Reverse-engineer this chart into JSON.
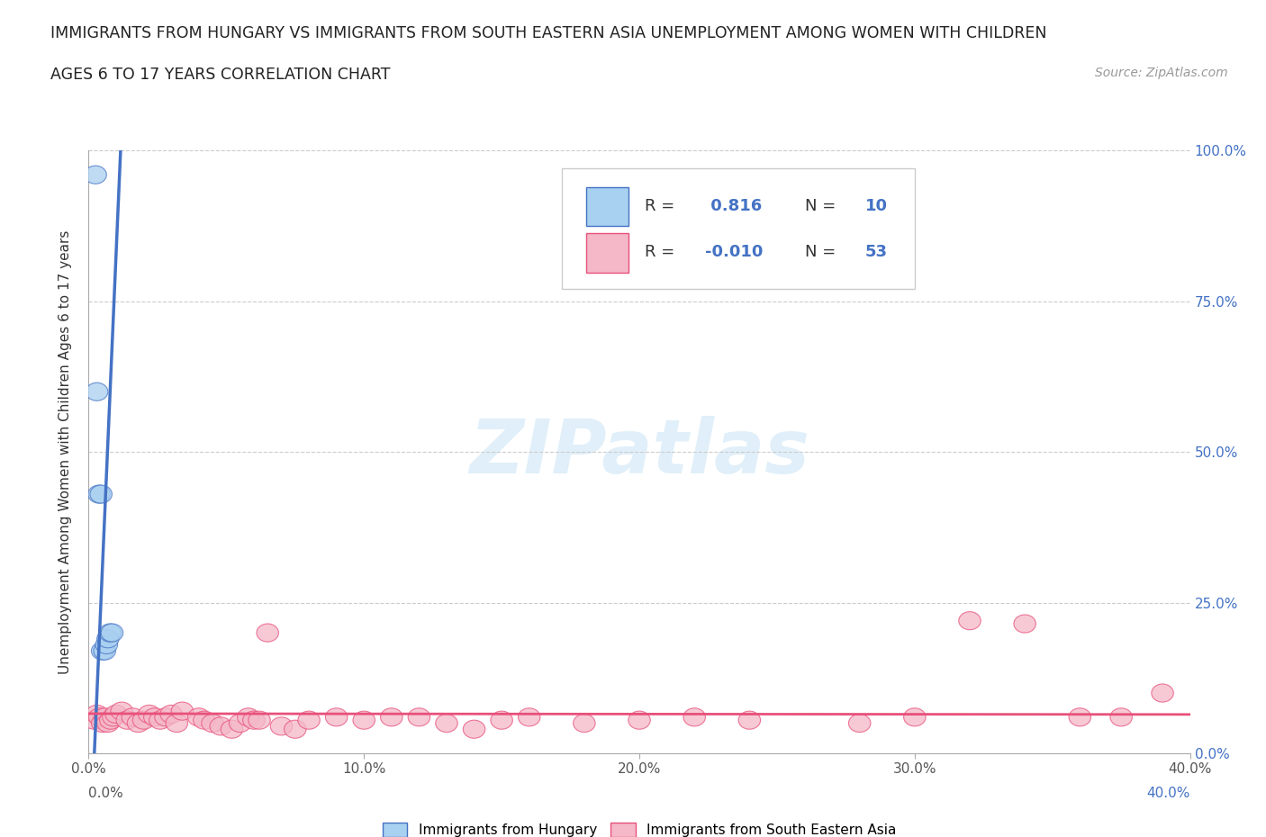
{
  "title_line1": "IMMIGRANTS FROM HUNGARY VS IMMIGRANTS FROM SOUTH EASTERN ASIA UNEMPLOYMENT AMONG WOMEN WITH CHILDREN",
  "title_line2": "AGES 6 TO 17 YEARS CORRELATION CHART",
  "source": "Source: ZipAtlas.com",
  "ylabel": "Unemployment Among Women with Children Ages 6 to 17 years",
  "xlim": [
    0.0,
    0.4
  ],
  "ylim": [
    0.0,
    1.0
  ],
  "xticks": [
    0.0,
    0.1,
    0.2,
    0.3,
    0.4
  ],
  "xticklabels": [
    "0.0%",
    "10.0%",
    "20.0%",
    "30.0%",
    "40.0%"
  ],
  "yticks": [
    0.0,
    0.25,
    0.5,
    0.75,
    1.0
  ],
  "yticklabels": [
    "0.0%",
    "25.0%",
    "50.0%",
    "75.0%",
    "100.0%"
  ],
  "hungary_color": "#a8d0f0",
  "hungary_edge_color": "#4472c4",
  "sea_color": "#f4b8c8",
  "sea_edge_color": "#e8507a",
  "sea_line_color": "#e8507a",
  "hungary_R": 0.816,
  "hungary_N": 10,
  "sea_R": -0.01,
  "sea_N": 53,
  "hungary_x": [
    0.0025,
    0.003,
    0.0038,
    0.0045,
    0.005,
    0.0058,
    0.0065,
    0.007,
    0.0078,
    0.0085
  ],
  "hungary_y": [
    0.96,
    0.6,
    0.43,
    0.43,
    0.17,
    0.17,
    0.18,
    0.19,
    0.2,
    0.2
  ],
  "sea_x": [
    0.002,
    0.003,
    0.004,
    0.005,
    0.006,
    0.007,
    0.008,
    0.009,
    0.01,
    0.012,
    0.014,
    0.016,
    0.018,
    0.02,
    0.022,
    0.024,
    0.026,
    0.028,
    0.03,
    0.032,
    0.034,
    0.04,
    0.042,
    0.045,
    0.048,
    0.052,
    0.055,
    0.058,
    0.06,
    0.062,
    0.065,
    0.07,
    0.075,
    0.08,
    0.09,
    0.1,
    0.11,
    0.12,
    0.13,
    0.14,
    0.15,
    0.16,
    0.18,
    0.2,
    0.22,
    0.24,
    0.28,
    0.3,
    0.32,
    0.34,
    0.36,
    0.375,
    0.39
  ],
  "sea_y": [
    0.055,
    0.065,
    0.06,
    0.05,
    0.06,
    0.05,
    0.055,
    0.06,
    0.065,
    0.07,
    0.055,
    0.06,
    0.05,
    0.055,
    0.065,
    0.06,
    0.055,
    0.06,
    0.065,
    0.05,
    0.07,
    0.06,
    0.055,
    0.05,
    0.045,
    0.04,
    0.05,
    0.06,
    0.055,
    0.055,
    0.2,
    0.045,
    0.04,
    0.055,
    0.06,
    0.055,
    0.06,
    0.06,
    0.05,
    0.04,
    0.055,
    0.06,
    0.05,
    0.055,
    0.06,
    0.055,
    0.05,
    0.06,
    0.22,
    0.215,
    0.06,
    0.06,
    0.1
  ],
  "background_color": "#ffffff",
  "grid_color": "#cccccc",
  "watermark_text": "ZIPatlas",
  "legend_labels": [
    "Immigrants from Hungary",
    "Immigrants from South Eastern Asia"
  ]
}
